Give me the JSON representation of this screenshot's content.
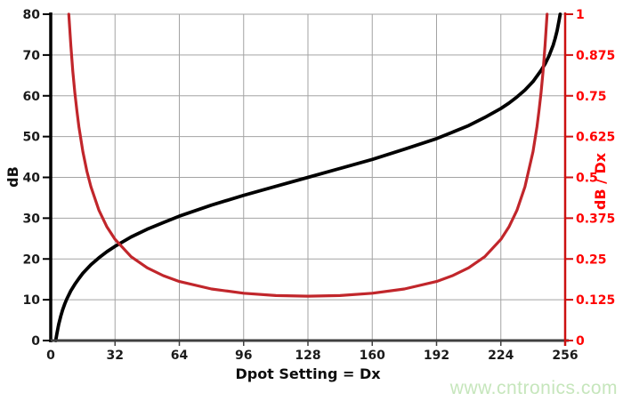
{
  "chart_data": {
    "type": "line",
    "title": "",
    "xlabel": "Dpot Setting = Dx",
    "xlim": [
      0,
      256
    ],
    "x_ticks": [
      0,
      32,
      64,
      96,
      128,
      160,
      192,
      224,
      256
    ],
    "grid": true,
    "legend": false,
    "left_axis": {
      "label": "dB",
      "lim": [
        0,
        80
      ],
      "ticks": [
        0,
        10,
        20,
        30,
        40,
        50,
        60,
        70,
        80
      ],
      "color": "#000000"
    },
    "right_axis": {
      "label": "dB / Dx",
      "lim": [
        0,
        1
      ],
      "ticks": [
        "0",
        "0.125",
        "0.25",
        "0.375",
        "0.5",
        "0.625",
        "0.75",
        "0.875",
        "1"
      ],
      "axis_color": "#cc1111",
      "text_color": "#ff0000"
    },
    "series": [
      {
        "name": "dB",
        "slug": "db",
        "axis": "left",
        "color": "#000000",
        "width": 3.8,
        "points": [
          [
            2.5,
            0
          ],
          [
            3,
            1.5
          ],
          [
            3.5,
            2.8
          ],
          [
            4,
            4.0
          ],
          [
            5,
            6.0
          ],
          [
            6,
            7.6
          ],
          [
            7,
            9.0
          ],
          [
            8,
            10.2
          ],
          [
            10,
            12.2
          ],
          [
            12,
            13.8
          ],
          [
            14,
            15.2
          ],
          [
            16,
            16.5
          ],
          [
            20,
            18.6
          ],
          [
            24,
            20.3
          ],
          [
            28,
            21.8
          ],
          [
            32,
            23.1
          ],
          [
            40,
            25.4
          ],
          [
            48,
            27.3
          ],
          [
            56,
            28.9
          ],
          [
            64,
            30.5
          ],
          [
            80,
            33.2
          ],
          [
            96,
            35.6
          ],
          [
            112,
            37.8
          ],
          [
            128,
            40
          ],
          [
            144,
            42.2
          ],
          [
            160,
            44.4
          ],
          [
            176,
            46.9
          ],
          [
            192,
            49.5
          ],
          [
            200,
            51.1
          ],
          [
            208,
            52.7
          ],
          [
            216,
            54.7
          ],
          [
            224,
            56.9
          ],
          [
            228,
            58.2
          ],
          [
            232,
            59.7
          ],
          [
            236,
            61.4
          ],
          [
            240,
            63.5
          ],
          [
            244,
            66.2
          ],
          [
            246,
            67.8
          ],
          [
            248,
            69.8
          ],
          [
            250,
            72.4
          ],
          [
            251,
            74.0
          ],
          [
            252,
            76.0
          ],
          [
            253,
            78.5
          ],
          [
            253.5,
            80
          ]
        ]
      },
      {
        "name": "dB / Dx",
        "slug": "db-per-dx",
        "axis": "right",
        "color": "#c1262b",
        "width": 3.2,
        "points": [
          [
            9,
            1.0
          ],
          [
            10,
            0.904
          ],
          [
            11,
            0.825
          ],
          [
            12,
            0.759
          ],
          [
            13,
            0.704
          ],
          [
            14,
            0.656
          ],
          [
            16,
            0.579
          ],
          [
            18,
            0.519
          ],
          [
            20,
            0.471
          ],
          [
            24,
            0.399
          ],
          [
            28,
            0.348
          ],
          [
            32,
            0.31
          ],
          [
            40,
            0.257
          ],
          [
            48,
            0.223
          ],
          [
            56,
            0.199
          ],
          [
            64,
            0.181
          ],
          [
            80,
            0.158
          ],
          [
            96,
            0.145
          ],
          [
            112,
            0.138
          ],
          [
            128,
            0.136
          ],
          [
            144,
            0.138
          ],
          [
            160,
            0.145
          ],
          [
            176,
            0.158
          ],
          [
            192,
            0.181
          ],
          [
            200,
            0.199
          ],
          [
            208,
            0.223
          ],
          [
            216,
            0.257
          ],
          [
            224,
            0.31
          ],
          [
            228,
            0.348
          ],
          [
            232,
            0.399
          ],
          [
            236,
            0.471
          ],
          [
            240,
            0.579
          ],
          [
            242,
            0.656
          ],
          [
            243,
            0.704
          ],
          [
            244,
            0.759
          ],
          [
            245,
            0.825
          ],
          [
            246,
            0.904
          ],
          [
            247,
            1.0
          ]
        ]
      }
    ]
  },
  "colors": {
    "grid": "#a3a3a3",
    "bottom_axis": "#3f3f3f",
    "tick_text": "#1b1b1b"
  },
  "watermark": {
    "text": "www.cntronics.com",
    "color": "#c6e6bc"
  }
}
